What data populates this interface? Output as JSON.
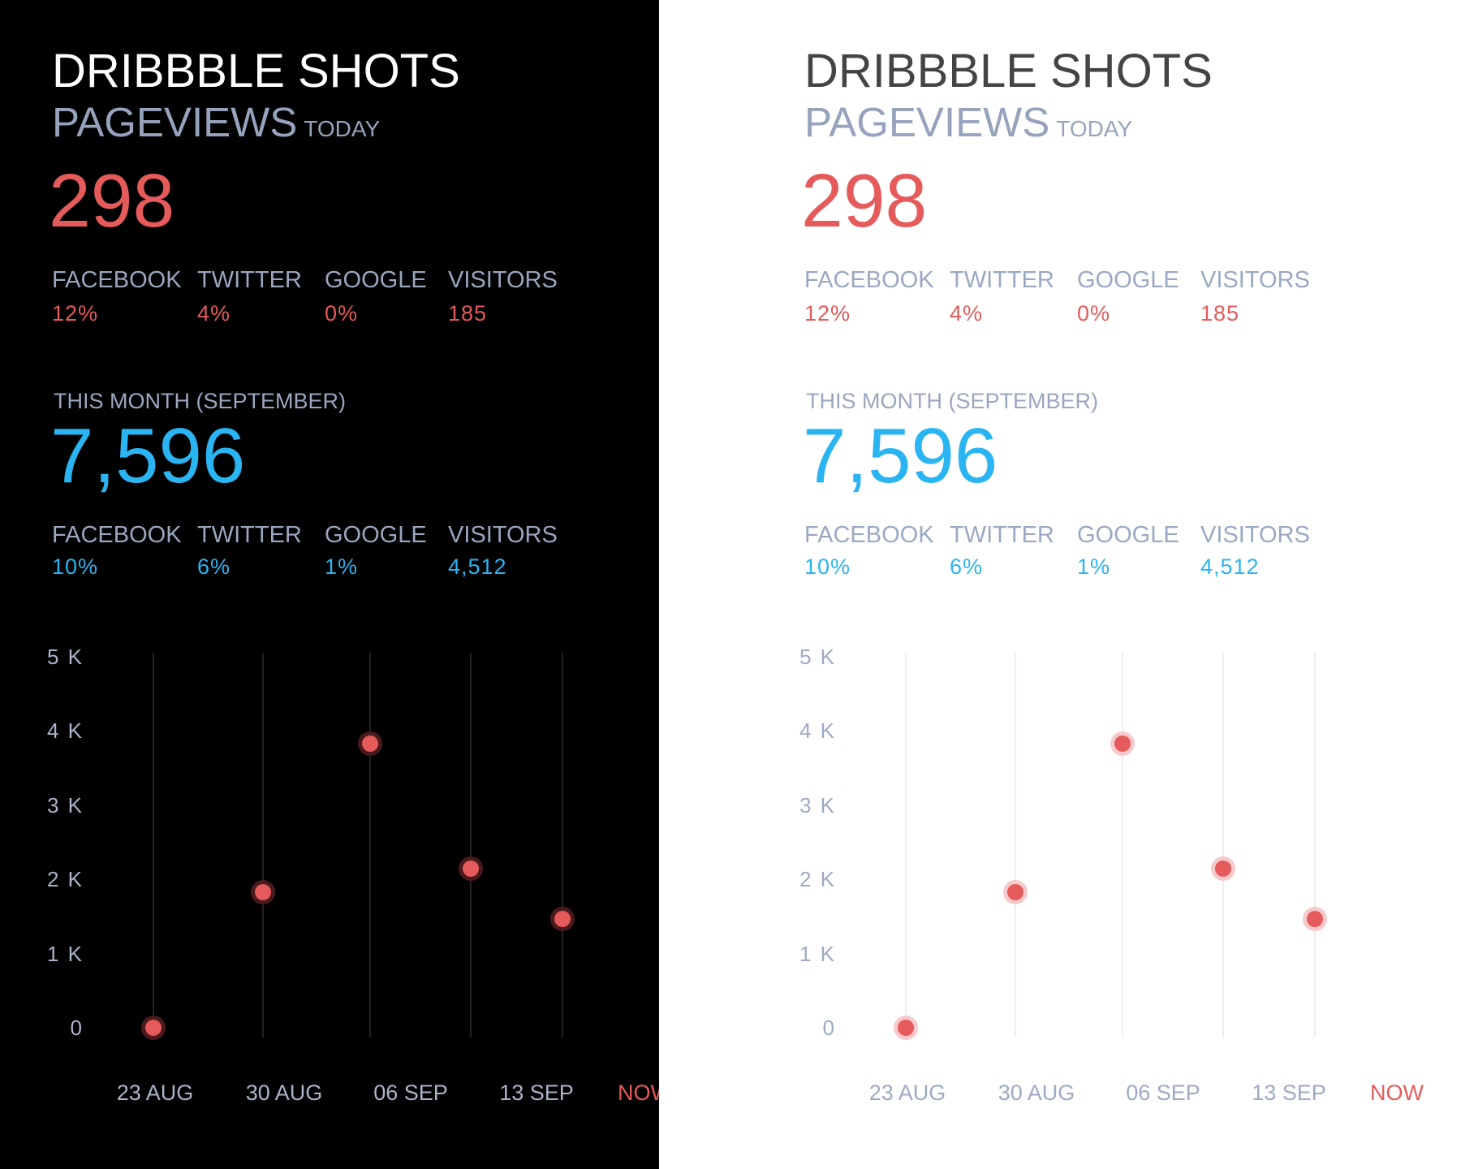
{
  "title": "DRIBBBLE SHOTS",
  "subtitle": "PAGEVIEWS",
  "subtitle_small": "TODAY",
  "today": {
    "total": "298",
    "stats": [
      {
        "label": "FACEBOOK",
        "value": "12%"
      },
      {
        "label": "TWITTER",
        "value": "4%"
      },
      {
        "label": "GOOGLE",
        "value": "0%"
      },
      {
        "label": "VISITORS",
        "value": "185"
      }
    ]
  },
  "month": {
    "label": "THIS MONTH (SEPTEMBER)",
    "total": "7,596",
    "stats": [
      {
        "label": "FACEBOOK",
        "value": "10%"
      },
      {
        "label": "TWITTER",
        "value": "6%"
      },
      {
        "label": "GOOGLE",
        "value": "1%"
      },
      {
        "label": "VISITORS",
        "value": "4,512"
      }
    ]
  },
  "colors": {
    "today_accent": "#e55a5a",
    "month_accent": "#2bb4f2",
    "label": "#9ba6bf",
    "dark_bg": "#000000",
    "light_bg": "#ffffff"
  },
  "themes": [
    "dark",
    "light"
  ],
  "chart_data": {
    "type": "scatter",
    "y_ticks": [
      "0",
      "1  K",
      "2 K",
      "3 K",
      "4 K",
      "5 K"
    ],
    "ylim": [
      0,
      5000
    ],
    "x_ticks": [
      "23 AUG",
      "30 AUG",
      "06 SEP",
      "13 SEP"
    ],
    "x_now_label": "NOW",
    "values": [
      0,
      1830,
      3830,
      2140,
      1470
    ],
    "grid": "vertical lines at each point",
    "point_color": "#e55a5a"
  }
}
